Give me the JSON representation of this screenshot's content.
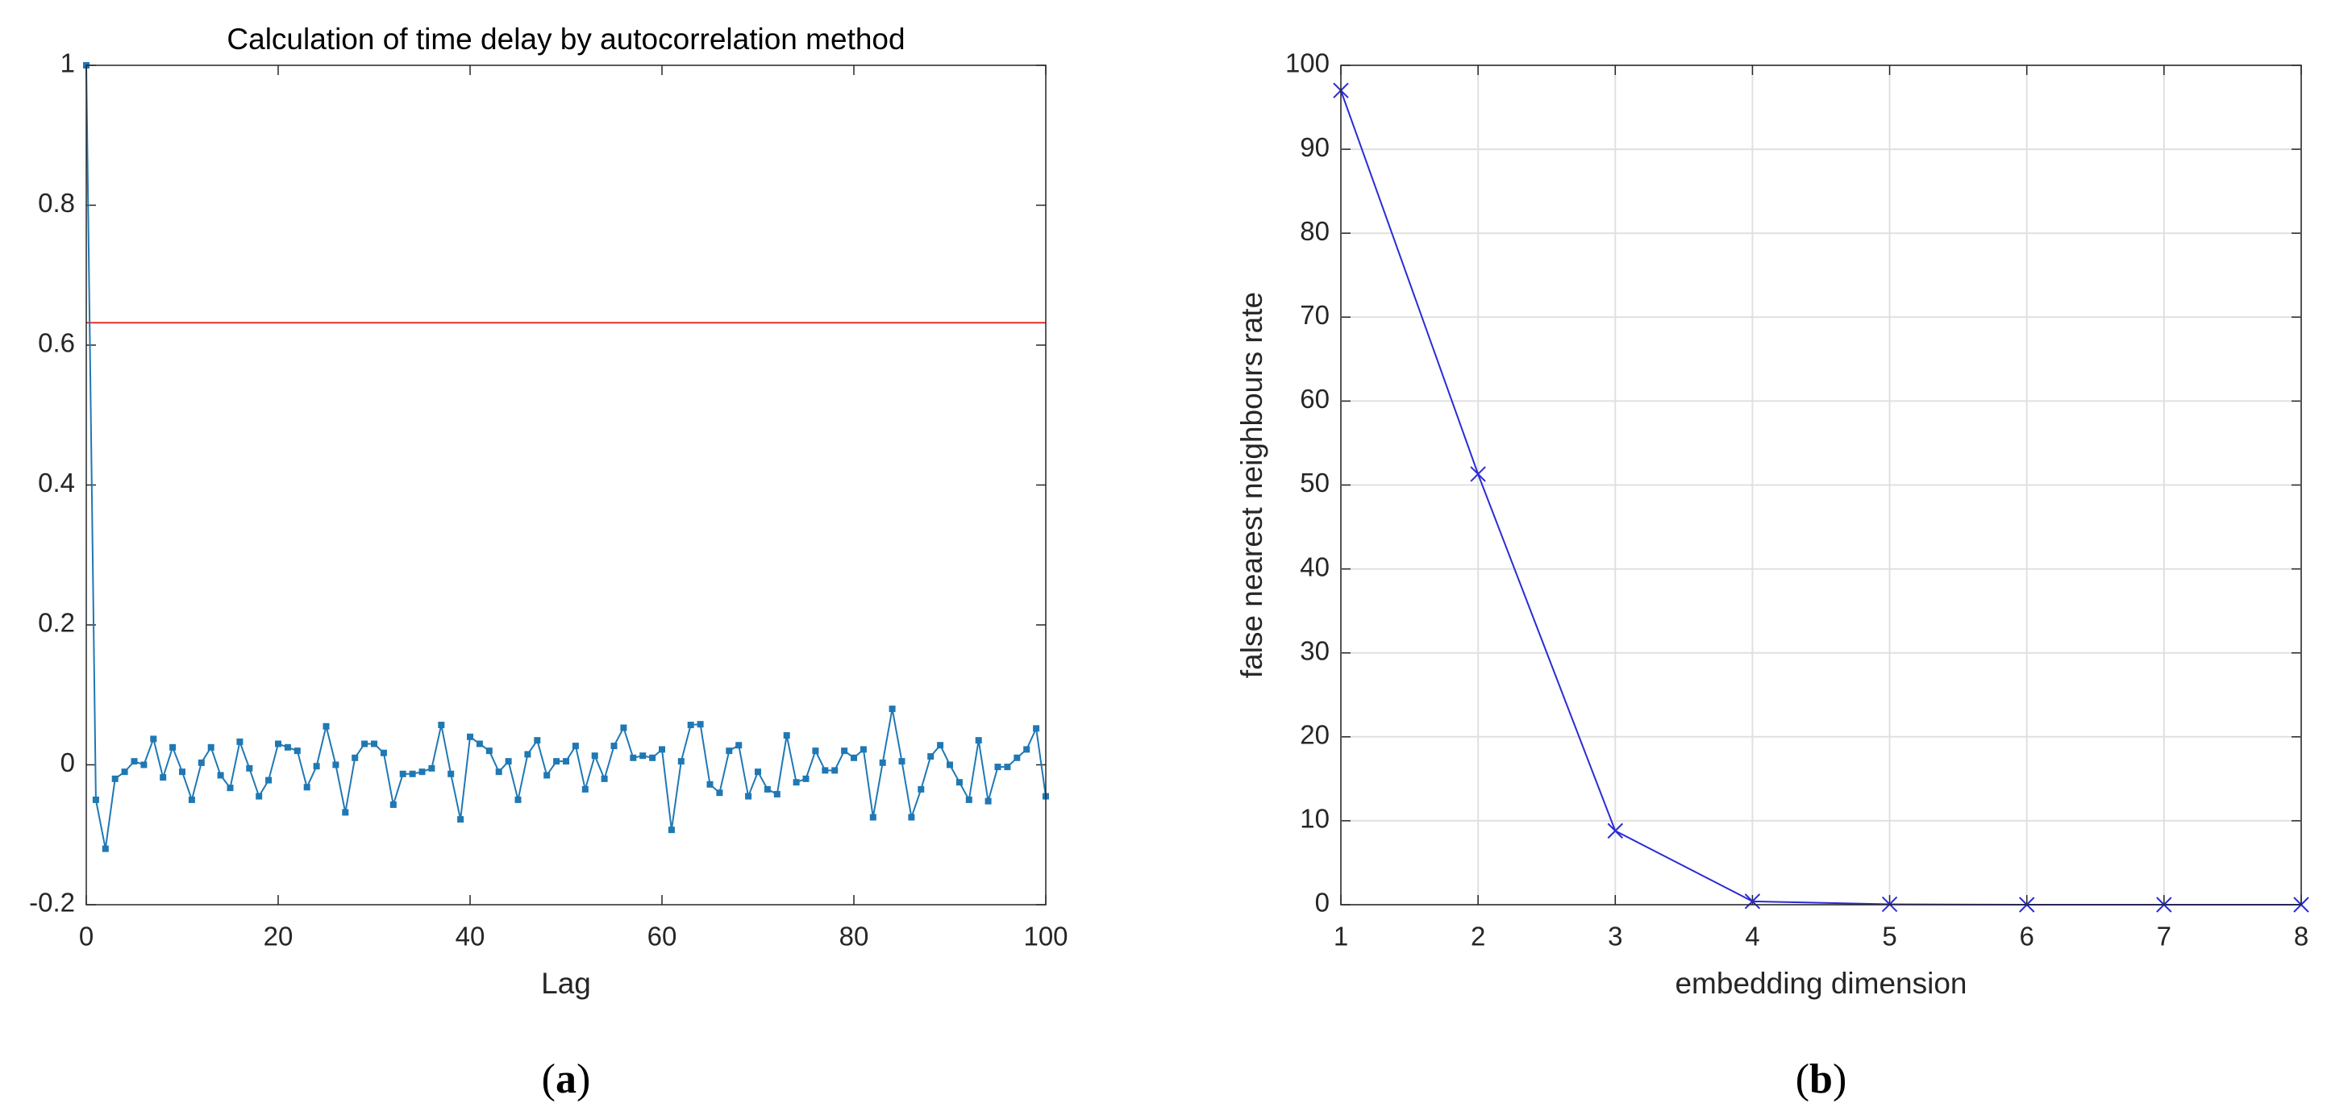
{
  "chart_data": [
    {
      "type": "line",
      "title": "Calculation of time delay by autocorrelation method",
      "x_label": "Lag",
      "caption_label": "a",
      "x": [
        0,
        1,
        2,
        3,
        4,
        5,
        6,
        7,
        8,
        9,
        10,
        11,
        12,
        13,
        14,
        15,
        16,
        17,
        18,
        19,
        20,
        21,
        22,
        23,
        24,
        25,
        26,
        27,
        28,
        29,
        30,
        31,
        32,
        33,
        34,
        35,
        36,
        37,
        38,
        39,
        40,
        41,
        42,
        43,
        44,
        45,
        46,
        47,
        48,
        49,
        50,
        51,
        52,
        53,
        54,
        55,
        56,
        57,
        58,
        59,
        60,
        61,
        62,
        63,
        64,
        65,
        66,
        67,
        68,
        69,
        70,
        71,
        72,
        73,
        74,
        75,
        76,
        77,
        78,
        79,
        80,
        81,
        82,
        83,
        84,
        85,
        86,
        87,
        88,
        89,
        90,
        91,
        92,
        93,
        94,
        95,
        96,
        97,
        98,
        99,
        100
      ],
      "values": [
        1,
        -0.05,
        -0.12,
        -0.02,
        -0.01,
        0.005,
        0,
        0.037,
        -0.018,
        0.025,
        -0.01,
        -0.05,
        0.003,
        0.025,
        -0.015,
        -0.033,
        0.033,
        -0.005,
        -0.045,
        -0.022,
        0.03,
        0.025,
        0.02,
        -0.032,
        -0.002,
        0.055,
        0,
        -0.068,
        0.01,
        0.03,
        0.03,
        0.017,
        -0.057,
        -0.013,
        -0.013,
        -0.01,
        -0.005,
        0.057,
        -0.013,
        -0.078,
        0.04,
        0.03,
        0.02,
        -0.01,
        0.005,
        -0.05,
        0.015,
        0.035,
        -0.015,
        0.005,
        0.005,
        0.027,
        -0.035,
        0.013,
        -0.02,
        0.027,
        0.053,
        0.01,
        0.013,
        0.01,
        0.022,
        -0.093,
        0.005,
        0.057,
        0.058,
        -0.028,
        -0.04,
        0.02,
        0.028,
        -0.045,
        -0.01,
        -0.035,
        -0.042,
        0.042,
        -0.025,
        -0.02,
        0.02,
        -0.008,
        -0.008,
        0.02,
        0.01,
        0.022,
        -0.075,
        0.003,
        0.08,
        0.005,
        -0.075,
        -0.035,
        0.012,
        0.028,
        0,
        -0.025,
        -0.05,
        0.035,
        -0.052,
        -0.003,
        -0.003,
        0.01,
        0.022,
        0.052,
        -0.045
      ],
      "color": "#1f78b4",
      "marker": "square",
      "threshold": 0.632,
      "threshold_color": "#e8302a",
      "xlim": [
        0,
        100
      ],
      "xticks": [
        0,
        20,
        40,
        60,
        80,
        100
      ],
      "ylim": [
        -0.2,
        1
      ],
      "yticks": [
        -0.2,
        0,
        0.2,
        0.4,
        0.6,
        0.8,
        1
      ],
      "grid": false
    },
    {
      "type": "line",
      "x_label": "embedding dimension",
      "y_label": "false nearest neighbours rate",
      "caption_label": "b",
      "x": [
        1,
        2,
        3,
        4,
        5,
        6,
        7,
        8
      ],
      "values": [
        97,
        51.3,
        8.8,
        0.4,
        0.05,
        0,
        0,
        0
      ],
      "color": "#2b2bd6",
      "marker": "x",
      "xlim": [
        1,
        8
      ],
      "xticks": [
        1,
        2,
        3,
        4,
        5,
        6,
        7,
        8
      ],
      "ylim": [
        0,
        100
      ],
      "yticks": [
        0,
        10,
        20,
        30,
        40,
        50,
        60,
        70,
        80,
        90,
        100
      ],
      "grid": true
    }
  ]
}
